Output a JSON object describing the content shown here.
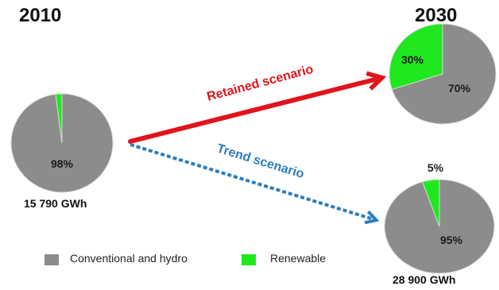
{
  "chart_data": {
    "type": "pie",
    "categories": [
      "Conventional and hydro",
      "Renewable"
    ],
    "colors": {
      "conventional": "#8c8c8c",
      "renewable": "#1fe81f",
      "retained_arrow": "#e0141c",
      "trend_arrow": "#2a7dbf"
    },
    "headings": {
      "start_year": "2010",
      "end_year": "2030"
    },
    "pies": [
      {
        "key": "p2010",
        "values": [
          98,
          2
        ],
        "labels": [
          "98%",
          ""
        ],
        "volume": "15 790 GWh"
      },
      {
        "key": "retained",
        "values": [
          70,
          30
        ],
        "labels": [
          "70%",
          "30%"
        ],
        "volume": ""
      },
      {
        "key": "trend",
        "values": [
          95,
          5
        ],
        "labels": [
          "95%",
          "5%"
        ],
        "volume": "28 900 GWh"
      }
    ],
    "arrows": {
      "retained": "Retained scenario",
      "trend": "Trend scenario"
    },
    "legend": {
      "conventional": "Conventional and hydro",
      "renewable": "Renewable"
    }
  }
}
